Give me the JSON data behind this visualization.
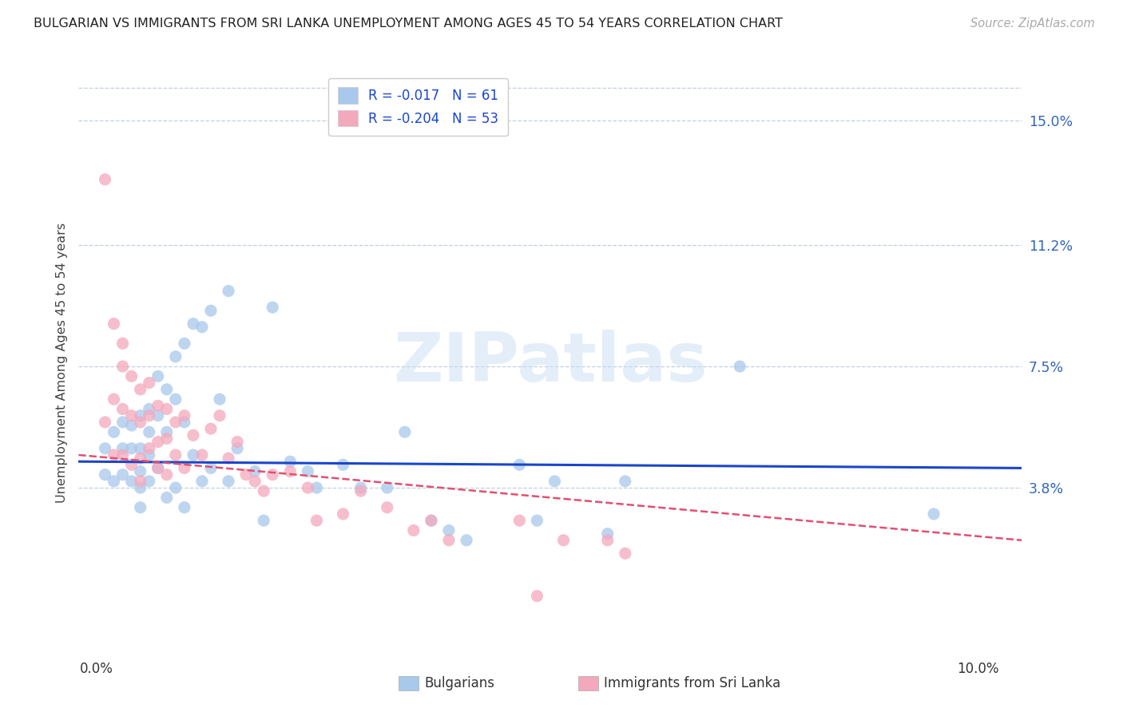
{
  "title": "BULGARIAN VS IMMIGRANTS FROM SRI LANKA UNEMPLOYMENT AMONG AGES 45 TO 54 YEARS CORRELATION CHART",
  "source": "Source: ZipAtlas.com",
  "ylabel": "Unemployment Among Ages 45 to 54 years",
  "ytick_right": [
    0.038,
    0.075,
    0.112,
    0.15
  ],
  "ytick_right_labels": [
    "3.8%",
    "7.5%",
    "11.2%",
    "15.0%"
  ],
  "xlim": [
    -0.002,
    0.105
  ],
  "ylim": [
    -0.013,
    0.165
  ],
  "watermark_text": "ZIPatlas",
  "color_blue": "#A8C8EC",
  "color_pink": "#F4A8BC",
  "color_blue_line": "#1A46CC",
  "color_pink_line": "#E05070",
  "color_grid": "#C0D0E0",
  "color_title": "#222222",
  "color_source": "#AAAAAA",
  "color_ytick": "#3366BB",
  "color_xtick": "#333333",
  "legend_labels": [
    "R = -0.017   N = 61",
    "R = -0.204   N = 53"
  ],
  "bottom_labels": [
    "Bulgarians",
    "Immigrants from Sri Lanka"
  ],
  "bulgarians_x": [
    0.001,
    0.001,
    0.002,
    0.002,
    0.003,
    0.003,
    0.003,
    0.004,
    0.004,
    0.004,
    0.005,
    0.005,
    0.005,
    0.005,
    0.005,
    0.006,
    0.006,
    0.006,
    0.006,
    0.007,
    0.007,
    0.007,
    0.008,
    0.008,
    0.008,
    0.009,
    0.009,
    0.009,
    0.01,
    0.01,
    0.01,
    0.011,
    0.011,
    0.012,
    0.012,
    0.013,
    0.013,
    0.014,
    0.015,
    0.015,
    0.016,
    0.018,
    0.019,
    0.02,
    0.022,
    0.024,
    0.025,
    0.028,
    0.03,
    0.033,
    0.035,
    0.038,
    0.04,
    0.042,
    0.048,
    0.05,
    0.052,
    0.058,
    0.06,
    0.073,
    0.095
  ],
  "bulgarians_y": [
    0.05,
    0.042,
    0.055,
    0.04,
    0.058,
    0.05,
    0.042,
    0.057,
    0.05,
    0.04,
    0.06,
    0.05,
    0.043,
    0.038,
    0.032,
    0.062,
    0.055,
    0.048,
    0.04,
    0.072,
    0.06,
    0.044,
    0.068,
    0.055,
    0.035,
    0.078,
    0.065,
    0.038,
    0.082,
    0.058,
    0.032,
    0.088,
    0.048,
    0.087,
    0.04,
    0.092,
    0.044,
    0.065,
    0.098,
    0.04,
    0.05,
    0.043,
    0.028,
    0.093,
    0.046,
    0.043,
    0.038,
    0.045,
    0.038,
    0.038,
    0.055,
    0.028,
    0.025,
    0.022,
    0.045,
    0.028,
    0.04,
    0.024,
    0.04,
    0.075,
    0.03
  ],
  "srilanka_x": [
    0.001,
    0.001,
    0.002,
    0.002,
    0.002,
    0.003,
    0.003,
    0.003,
    0.003,
    0.004,
    0.004,
    0.004,
    0.005,
    0.005,
    0.005,
    0.005,
    0.006,
    0.006,
    0.006,
    0.007,
    0.007,
    0.007,
    0.008,
    0.008,
    0.008,
    0.009,
    0.009,
    0.01,
    0.01,
    0.011,
    0.012,
    0.013,
    0.014,
    0.015,
    0.016,
    0.017,
    0.018,
    0.019,
    0.02,
    0.022,
    0.024,
    0.025,
    0.028,
    0.03,
    0.033,
    0.036,
    0.038,
    0.04,
    0.048,
    0.05,
    0.053,
    0.058,
    0.06
  ],
  "srilanka_y": [
    0.132,
    0.058,
    0.088,
    0.065,
    0.048,
    0.082,
    0.075,
    0.062,
    0.048,
    0.072,
    0.06,
    0.045,
    0.068,
    0.058,
    0.047,
    0.04,
    0.07,
    0.06,
    0.05,
    0.063,
    0.052,
    0.044,
    0.062,
    0.053,
    0.042,
    0.058,
    0.048,
    0.06,
    0.044,
    0.054,
    0.048,
    0.056,
    0.06,
    0.047,
    0.052,
    0.042,
    0.04,
    0.037,
    0.042,
    0.043,
    0.038,
    0.028,
    0.03,
    0.037,
    0.032,
    0.025,
    0.028,
    0.022,
    0.028,
    0.005,
    0.022,
    0.022,
    0.018
  ]
}
